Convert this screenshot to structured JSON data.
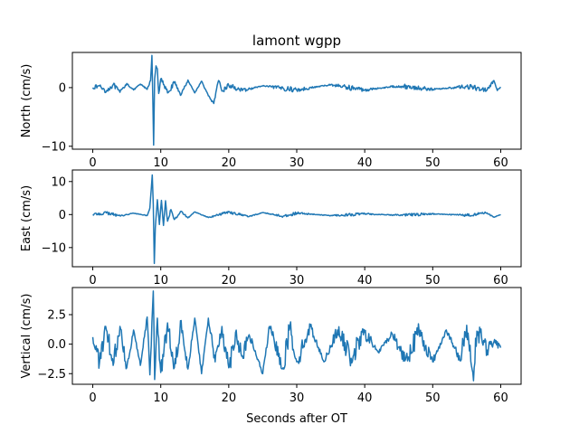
{
  "figure": {
    "title": "lamont wgpp",
    "xlabel": "Seconds after OT"
  },
  "colors": {
    "line": "#1f77b4",
    "axes": "#000000",
    "background": "#ffffff"
  },
  "chart_data": [
    {
      "type": "line",
      "component": "north",
      "title": "lamont wgpp",
      "xlabel": "",
      "ylabel": "North (cm/s)",
      "xlim": [
        -3,
        63
      ],
      "ylim": [
        -10.5,
        6
      ],
      "xticks": [
        0,
        10,
        20,
        30,
        40,
        50,
        60
      ],
      "yticks": [
        -10,
        0
      ],
      "grid": false,
      "noise_amplitude": 0.55,
      "anchors": [
        [
          0,
          0
        ],
        [
          1,
          0.3
        ],
        [
          2,
          -0.6
        ],
        [
          3,
          0.5
        ],
        [
          4,
          -0.8
        ],
        [
          5,
          0.7
        ],
        [
          6,
          -0.4
        ],
        [
          7,
          0.6
        ],
        [
          8,
          -0.3
        ],
        [
          8.5,
          1.2
        ],
        [
          8.7,
          5.5
        ],
        [
          8.85,
          -3
        ],
        [
          8.95,
          -9.8
        ],
        [
          9.1,
          1.5
        ],
        [
          9.3,
          3.7
        ],
        [
          9.5,
          3.2
        ],
        [
          9.7,
          -1
        ],
        [
          10,
          1.5
        ],
        [
          11,
          -0.9
        ],
        [
          12,
          0.8
        ],
        [
          13,
          -1.2
        ],
        [
          14,
          1.3
        ],
        [
          15,
          -0.9
        ],
        [
          16,
          1.1
        ],
        [
          17,
          -1.4
        ],
        [
          17.8,
          -2.7
        ],
        [
          18.5,
          1.2
        ],
        [
          19,
          -0.6
        ],
        [
          20,
          0.4
        ],
        [
          22,
          -0.5
        ],
        [
          25,
          0.3
        ],
        [
          30,
          -0.4
        ],
        [
          35,
          0.5
        ],
        [
          40,
          -0.4
        ],
        [
          45,
          0.3
        ],
        [
          50,
          -0.3
        ],
        [
          55,
          0.2
        ],
        [
          58,
          -0.4
        ],
        [
          59,
          1.2
        ],
        [
          59.5,
          -0.5
        ],
        [
          60,
          0.1
        ]
      ]
    },
    {
      "type": "line",
      "component": "east",
      "xlabel": "",
      "ylabel": "East (cm/s)",
      "xlim": [
        -3,
        63
      ],
      "ylim": [
        -15.8,
        13.5
      ],
      "xticks": [
        0,
        10,
        20,
        30,
        40,
        50,
        60
      ],
      "yticks": [
        -10,
        0,
        10
      ],
      "grid": false,
      "noise_amplitude": 0.55,
      "anchors": [
        [
          0,
          0
        ],
        [
          2,
          0.5
        ],
        [
          4,
          -0.4
        ],
        [
          6,
          0.4
        ],
        [
          8,
          -0.3
        ],
        [
          8.4,
          2
        ],
        [
          8.75,
          12
        ],
        [
          8.9,
          3
        ],
        [
          9.05,
          -14.8
        ],
        [
          9.2,
          -4
        ],
        [
          9.5,
          4.5
        ],
        [
          9.8,
          -3
        ],
        [
          10.1,
          4.3
        ],
        [
          10.4,
          -3.3
        ],
        [
          10.7,
          4.2
        ],
        [
          11,
          -2
        ],
        [
          11.5,
          1.5
        ],
        [
          12,
          -1.5
        ],
        [
          13,
          1
        ],
        [
          14,
          -1
        ],
        [
          15,
          0.8
        ],
        [
          17,
          -0.9
        ],
        [
          20,
          0.8
        ],
        [
          23,
          -0.6
        ],
        [
          25,
          0.6
        ],
        [
          28,
          -0.5
        ],
        [
          30,
          0.4
        ],
        [
          35,
          -0.3
        ],
        [
          40,
          0.2
        ],
        [
          45,
          -0.2
        ],
        [
          50,
          0.2
        ],
        [
          55,
          -0.2
        ],
        [
          58,
          0.5
        ],
        [
          59,
          -0.8
        ],
        [
          60,
          0
        ]
      ]
    },
    {
      "type": "line",
      "component": "vertical",
      "xlabel": "Seconds after OT",
      "ylabel": "Vertical (cm/s)",
      "xlim": [
        -3,
        63
      ],
      "ylim": [
        -3.4,
        4.8
      ],
      "xticks": [
        0,
        10,
        20,
        30,
        40,
        50,
        60
      ],
      "yticks": [
        -2.5,
        0.0,
        2.5
      ],
      "ytick_labels": [
        "−2.5",
        "0.0",
        "2.5"
      ],
      "grid": false,
      "noise_amplitude": 1.15,
      "anchors": [
        [
          0,
          0.6
        ],
        [
          1,
          -1.5
        ],
        [
          2,
          1.2
        ],
        [
          3,
          -1.8
        ],
        [
          4,
          1.5
        ],
        [
          5,
          -2
        ],
        [
          6,
          1.2
        ],
        [
          7,
          -1.8
        ],
        [
          8,
          2.3
        ],
        [
          8.4,
          -2.6
        ],
        [
          8.9,
          4.5
        ],
        [
          9.1,
          -3
        ],
        [
          9.5,
          2.2
        ],
        [
          10,
          -2.4
        ],
        [
          11,
          1.8
        ],
        [
          12,
          -2
        ],
        [
          13,
          2
        ],
        [
          14,
          -2.1
        ],
        [
          15,
          2.2
        ],
        [
          16,
          -2.5
        ],
        [
          17,
          2.2
        ],
        [
          18,
          -1.5
        ],
        [
          19,
          1.5
        ],
        [
          20,
          -2
        ],
        [
          21,
          1
        ],
        [
          22,
          -1
        ],
        [
          23,
          0.8
        ],
        [
          25,
          -2.5
        ],
        [
          26,
          1.5
        ],
        [
          28,
          -2
        ],
        [
          29,
          1.5
        ],
        [
          30,
          -1.5
        ],
        [
          32,
          1.5
        ],
        [
          34,
          -1.5
        ],
        [
          36,
          1.2
        ],
        [
          38,
          -1.2
        ],
        [
          40,
          1
        ],
        [
          42,
          -0.7
        ],
        [
          44,
          0.9
        ],
        [
          46,
          -1.3
        ],
        [
          48,
          1.1
        ],
        [
          50,
          -1.5
        ],
        [
          52,
          1.2
        ],
        [
          54,
          -1.4
        ],
        [
          55,
          1.6
        ],
        [
          56,
          -3.1
        ],
        [
          56.3,
          0.5
        ],
        [
          57,
          1
        ],
        [
          58,
          -0.5
        ],
        [
          59,
          0.2
        ],
        [
          60,
          -0.3
        ]
      ]
    }
  ]
}
